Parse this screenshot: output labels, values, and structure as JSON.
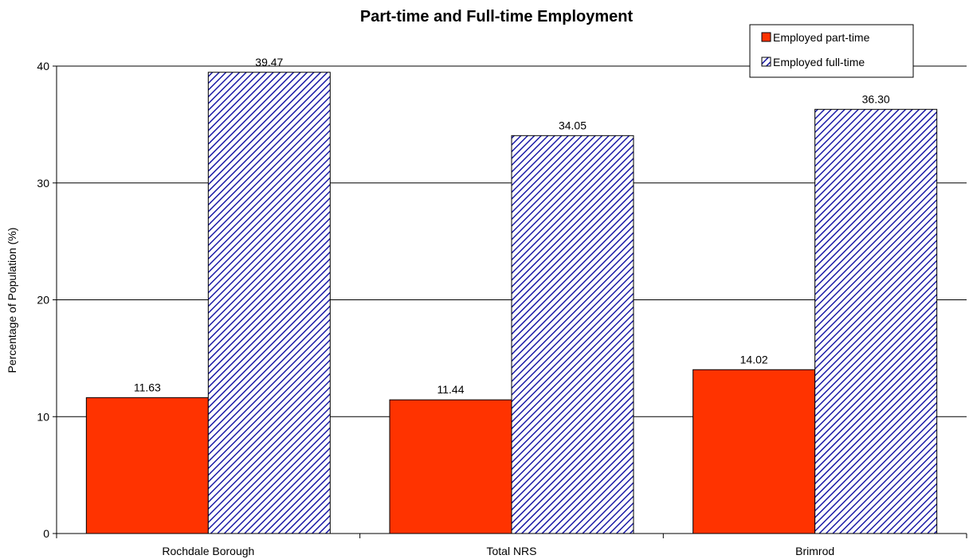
{
  "chart_data": {
    "type": "bar",
    "title": "Part-time and Full-time Employment",
    "xlabel": "",
    "ylabel": "Percentage of Population (%)",
    "ylim": [
      0,
      40
    ],
    "yticks": [
      0,
      10,
      20,
      30,
      40
    ],
    "categories": [
      "Rochdale Borough",
      "Total NRS",
      "Brimrod"
    ],
    "series": [
      {
        "name": "Employed part-time",
        "values": [
          11.63,
          11.44,
          14.02
        ],
        "labels": [
          "11.63",
          "11.44",
          "14.02"
        ],
        "color": "#ff3300",
        "pattern": "solid"
      },
      {
        "name": "Employed full-time",
        "values": [
          39.47,
          34.05,
          36.3
        ],
        "labels": [
          "39.47",
          "34.05",
          "36.30"
        ],
        "color": "#1a1aa6",
        "pattern": "diagonal-hatch"
      }
    ],
    "grid": true,
    "legend_position": "top-right"
  }
}
